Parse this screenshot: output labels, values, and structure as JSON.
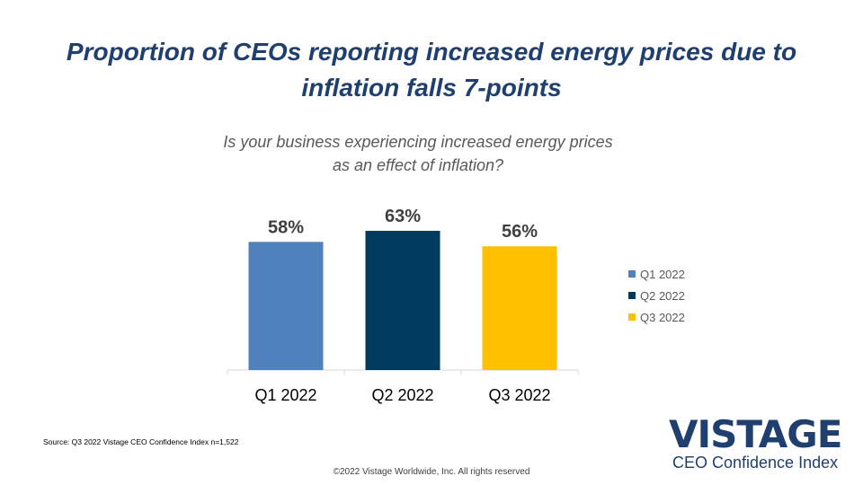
{
  "title_line1": "Proportion of CEOs reporting increased energy prices due to",
  "title_line2": "inflation falls 7-points",
  "question_line1": "Is your business experiencing increased energy prices",
  "question_line2": "as an effect of inflation?",
  "source": "Source: Q3 2022 Vistage CEO Confidence Index n=1,522",
  "copyright": "©2022 Vistage Worldwide, Inc. All rights reserved",
  "logo": {
    "word": "VISTAGE",
    "sub": "CEO Confidence Index"
  },
  "colors": {
    "title": "#1F3F6E",
    "q1": "#4F81BD",
    "q2": "#003A5D",
    "q3": "#FFC000"
  },
  "chart_data": {
    "type": "bar",
    "categories": [
      "Q1 2022",
      "Q2 2022",
      "Q3 2022"
    ],
    "values": [
      58,
      63,
      56
    ],
    "data_labels": [
      "58%",
      "63%",
      "56%"
    ],
    "ylim": [
      0,
      70
    ],
    "unit": "%",
    "legend": {
      "position": "right",
      "entries": [
        "Q1 2022",
        "Q2 2022",
        "Q3 2022"
      ]
    },
    "grid": false
  }
}
